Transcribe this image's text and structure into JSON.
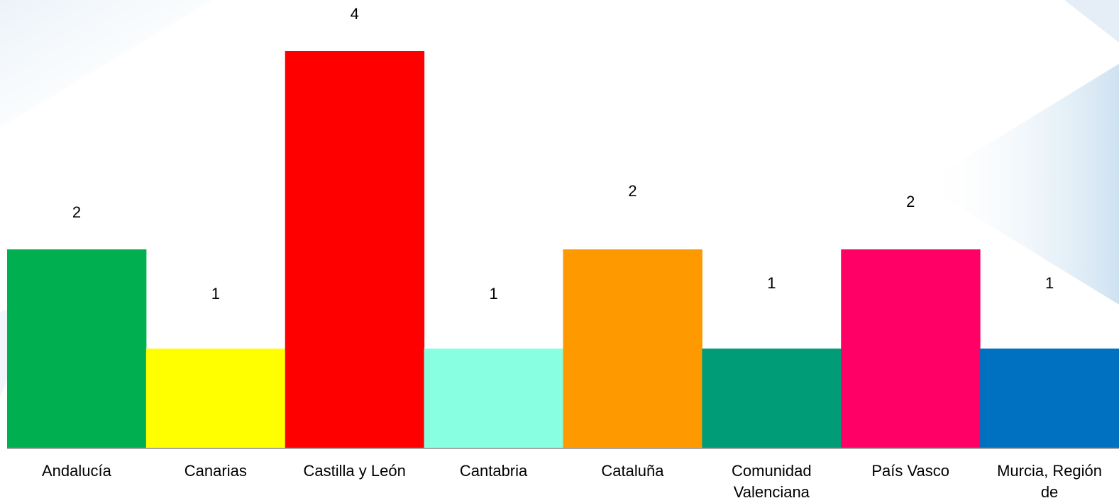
{
  "chart_data": {
    "type": "bar",
    "categories": [
      "Andalucía",
      "Canarias",
      "Castilla y León",
      "Cantabria",
      "Cataluña",
      "Comunidad Valenciana",
      "País Vasco",
      "Murcia, Región de"
    ],
    "category_lines": [
      [
        "Andalucía"
      ],
      [
        "Canarias"
      ],
      [
        "Castilla y León"
      ],
      [
        "Cantabria"
      ],
      [
        "Cataluña"
      ],
      [
        "Comunidad",
        "Valenciana"
      ],
      [
        "País Vasco"
      ],
      [
        "Murcia, Región",
        "de"
      ]
    ],
    "values": [
      2,
      1,
      4,
      1,
      2,
      1,
      2,
      1
    ],
    "data_labels": [
      "2",
      "1",
      "4",
      "1",
      "2",
      "1",
      "2",
      "1"
    ],
    "colors": [
      "#00b050",
      "#ffff00",
      "#ff0000",
      "#88ffe0",
      "#ff9900",
      "#009b77",
      "#ff0066",
      "#0070c0"
    ],
    "title": "",
    "xlabel": "",
    "ylabel": "",
    "ylim": [
      0,
      4
    ],
    "grid": false,
    "legend": "none"
  }
}
